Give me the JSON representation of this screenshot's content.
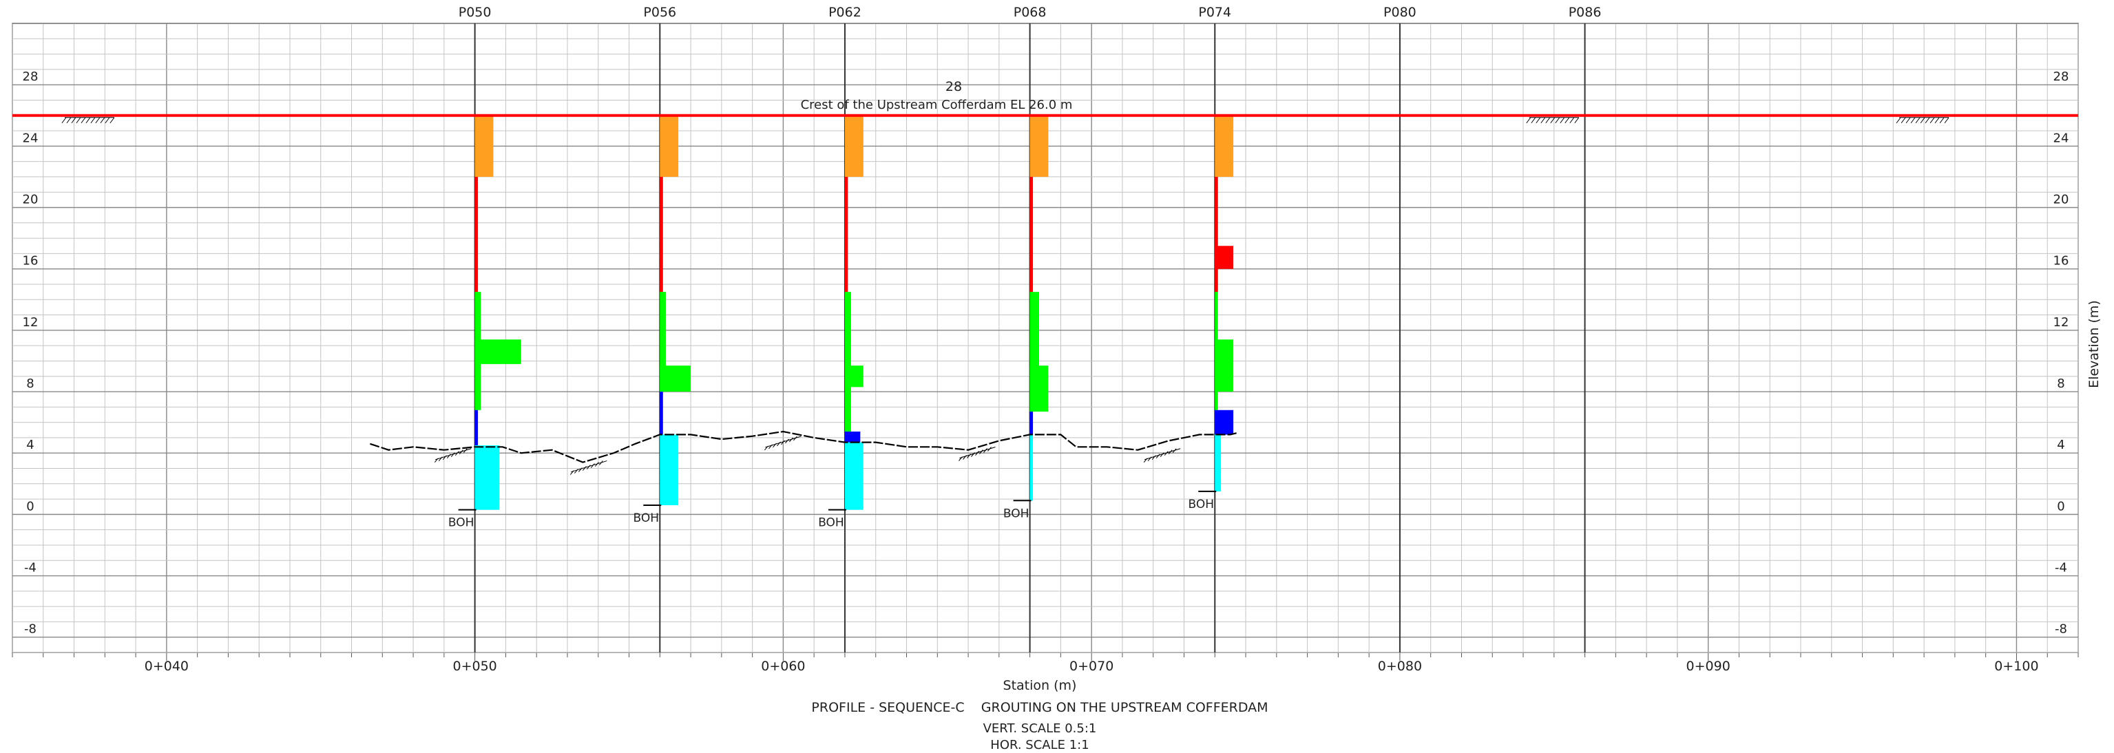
{
  "drawing": {
    "crest_label": "Crest of the Upstream Cofferdam EL 26.0 m",
    "crest_value_label": "28",
    "xlabel": "Station (m)",
    "ylabel": "Elevation (m)",
    "title": "PROFILE - SEQUENCE-C    GROUTING ON THE UPSTREAM COFFERDAM",
    "vert_scale": "VERT. SCALE 0.5:1",
    "hor_scale": "HOR. SCALE 1:1",
    "boh_label": "BOH"
  },
  "chart_data": {
    "type": "profile",
    "xlim": [
      35,
      102
    ],
    "ylim": [
      -9,
      32
    ],
    "y_ticks": [
      "28",
      "24",
      "20",
      "16",
      "12",
      "8",
      "4",
      "0",
      "-4",
      "-8"
    ],
    "y_tick_values": [
      28,
      24,
      20,
      16,
      12,
      8,
      4,
      0,
      -4,
      -8
    ],
    "x_ticks": [
      "0+040",
      "0+050",
      "0+060",
      "0+070",
      "0+080",
      "0+090",
      "0+100"
    ],
    "x_tick_values": [
      40,
      50,
      60,
      70,
      80,
      90,
      100
    ],
    "crest_elevation": 26.0,
    "colors": {
      "crest": "#ff0000",
      "orange": "#ffa020",
      "red": "#ff0000",
      "green": "#00ff00",
      "blue": "#0000ff",
      "cyan": "#00ffff",
      "ground": "#000000"
    },
    "boreholes": [
      {
        "name": "P050",
        "station": 50,
        "boh": 0.3,
        "segments": [
          {
            "from": 22,
            "to": 26,
            "color": "orange",
            "width": 0.6
          },
          {
            "from": 14.5,
            "to": 22,
            "color": "red",
            "width": 0.1
          },
          {
            "from": 6.8,
            "to": 14.5,
            "color": "green",
            "width": 0.2
          },
          {
            "from": 9.8,
            "to": 11.4,
            "color": "green",
            "width": 1.5
          },
          {
            "from": 4.5,
            "to": 6.8,
            "color": "blue",
            "width": 0.1
          },
          {
            "from": 0.3,
            "to": 4.5,
            "color": "cyan",
            "width": 0.8
          }
        ]
      },
      {
        "name": "P056",
        "station": 56,
        "boh": 0.6,
        "segments": [
          {
            "from": 22,
            "to": 26,
            "color": "orange",
            "width": 0.6
          },
          {
            "from": 14.5,
            "to": 22,
            "color": "red",
            "width": 0.1
          },
          {
            "from": 8,
            "to": 14.5,
            "color": "green",
            "width": 0.2
          },
          {
            "from": 8,
            "to": 9.7,
            "color": "green",
            "width": 1.0
          },
          {
            "from": 5.2,
            "to": 8,
            "color": "blue",
            "width": 0.1
          },
          {
            "from": 0.6,
            "to": 5.2,
            "color": "cyan",
            "width": 0.6
          }
        ]
      },
      {
        "name": "P062",
        "station": 62,
        "boh": 0.3,
        "segments": [
          {
            "from": 22,
            "to": 26,
            "color": "orange",
            "width": 0.6
          },
          {
            "from": 14.5,
            "to": 22,
            "color": "red",
            "width": 0.1
          },
          {
            "from": 5.4,
            "to": 14.5,
            "color": "green",
            "width": 0.2
          },
          {
            "from": 8.3,
            "to": 9.7,
            "color": "green",
            "width": 0.6
          },
          {
            "from": 4.7,
            "to": 5.4,
            "color": "blue",
            "width": 0.5
          },
          {
            "from": 0.3,
            "to": 4.7,
            "color": "cyan",
            "width": 0.6
          }
        ]
      },
      {
        "name": "P068",
        "station": 68,
        "boh": 0.9,
        "segments": [
          {
            "from": 22,
            "to": 26,
            "color": "orange",
            "width": 0.6
          },
          {
            "from": 14.5,
            "to": 22,
            "color": "red",
            "width": 0.1
          },
          {
            "from": 6.7,
            "to": 14.5,
            "color": "green",
            "width": 0.3
          },
          {
            "from": 6.7,
            "to": 9.7,
            "color": "green",
            "width": 0.6
          },
          {
            "from": 5.2,
            "to": 6.7,
            "color": "blue",
            "width": 0.1
          },
          {
            "from": 0.9,
            "to": 5.2,
            "color": "cyan",
            "width": 0.1
          }
        ]
      },
      {
        "name": "P074",
        "station": 74,
        "boh": 1.5,
        "segments": [
          {
            "from": 22,
            "to": 26,
            "color": "orange",
            "width": 0.6
          },
          {
            "from": 16,
            "to": 17.5,
            "color": "red",
            "width": 0.6
          },
          {
            "from": 14.5,
            "to": 22,
            "color": "red",
            "width": 0.1
          },
          {
            "from": 6.8,
            "to": 14.5,
            "color": "green",
            "width": 0.1
          },
          {
            "from": 8,
            "to": 11.4,
            "color": "green",
            "width": 0.6
          },
          {
            "from": 5.2,
            "to": 6.8,
            "color": "blue",
            "width": 0.6
          },
          {
            "from": 1.5,
            "to": 5.2,
            "color": "cyan",
            "width": 0.2
          }
        ]
      },
      {
        "name": "P080",
        "station": 80,
        "boh": null,
        "segments": []
      },
      {
        "name": "P086",
        "station": 86,
        "boh": null,
        "segments": []
      }
    ],
    "ground_line": [
      [
        46.6,
        4.6
      ],
      [
        47.2,
        4.2
      ],
      [
        48.0,
        4.4
      ],
      [
        49.0,
        4.2
      ],
      [
        50.0,
        4.4
      ],
      [
        50.9,
        4.4
      ],
      [
        51.5,
        4.0
      ],
      [
        52.5,
        4.2
      ],
      [
        53.5,
        3.4
      ],
      [
        54.5,
        4.0
      ],
      [
        55.2,
        4.6
      ],
      [
        56.0,
        5.2
      ],
      [
        57.0,
        5.2
      ],
      [
        58.0,
        4.9
      ],
      [
        59.0,
        5.1
      ],
      [
        60.0,
        5.4
      ],
      [
        61.0,
        5.0
      ],
      [
        62.0,
        4.7
      ],
      [
        63.0,
        4.7
      ],
      [
        64.0,
        4.4
      ],
      [
        65.0,
        4.4
      ],
      [
        66.0,
        4.2
      ],
      [
        67.0,
        4.8
      ],
      [
        68.0,
        5.2
      ],
      [
        69.0,
        5.2
      ],
      [
        69.5,
        4.4
      ],
      [
        70.5,
        4.4
      ],
      [
        71.5,
        4.2
      ],
      [
        72.5,
        4.8
      ],
      [
        73.5,
        5.2
      ],
      [
        74.5,
        5.2
      ],
      [
        74.7,
        5.3
      ]
    ],
    "crest_hatch_stations": [
      37.5,
      85.0,
      97.0
    ],
    "ground_hatch": [
      [
        49.3,
        4.2
      ],
      [
        53.7,
        3.4
      ],
      [
        60.0,
        5.0
      ],
      [
        66.3,
        4.3
      ],
      [
        72.3,
        4.2
      ]
    ]
  }
}
